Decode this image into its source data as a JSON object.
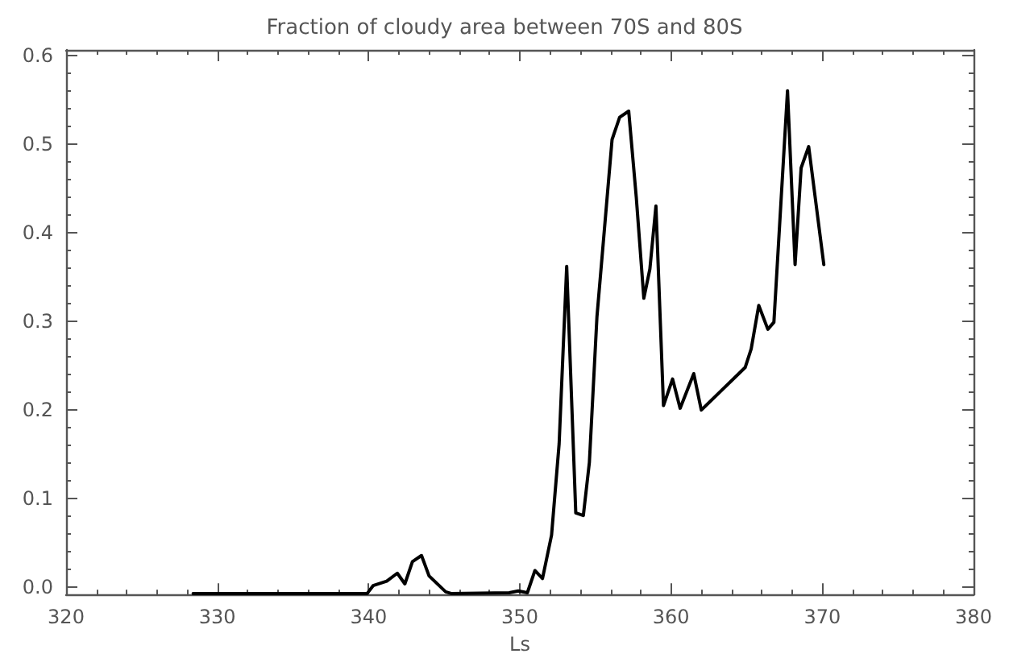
{
  "chart_data": {
    "type": "line",
    "title": "Fraction of cloudy area between 70S and 80S",
    "xlabel": "Ls",
    "x": [
      328.4,
      339.9,
      340.3,
      341.2,
      341.9,
      342.4,
      342.9,
      343.5,
      344.0,
      345.1,
      345.5,
      349.3,
      349.9,
      350.5,
      351.0,
      351.5,
      352.1,
      352.6,
      353.1,
      353.7,
      354.2,
      354.6,
      355.1,
      355.6,
      356.1,
      356.6,
      357.2,
      357.7,
      358.2,
      358.6,
      359.0,
      359.5,
      360.1,
      360.6,
      361.5,
      362.0,
      364.9,
      365.3,
      365.8,
      366.4,
      366.8,
      367.7,
      368.2,
      368.6,
      369.1,
      370.1
    ],
    "values": [
      -0.007,
      -0.007,
      0.002,
      0.007,
      0.016,
      0.004,
      0.029,
      0.036,
      0.013,
      -0.005,
      -0.007,
      -0.006,
      -0.004,
      -0.006,
      0.019,
      0.01,
      0.059,
      0.162,
      0.362,
      0.084,
      0.081,
      0.141,
      0.305,
      0.405,
      0.505,
      0.53,
      0.537,
      0.44,
      0.326,
      0.359,
      0.43,
      0.205,
      0.235,
      0.202,
      0.241,
      0.2,
      0.248,
      0.269,
      0.318,
      0.291,
      0.299,
      0.56,
      0.364,
      0.473,
      0.497,
      0.364
    ],
    "color": "#000000",
    "xlim": [
      320,
      380
    ],
    "xticks": [
      320,
      330,
      340,
      350,
      360,
      370,
      380
    ],
    "ylim": [
      -0.008,
      0.606
    ],
    "yticks": [
      {
        "value": 0,
        "label": "0.0"
      },
      {
        "value": 0.1,
        "label": "0.1"
      },
      {
        "value": 0.2,
        "label": "0.2"
      },
      {
        "value": 0.3,
        "label": "0.3"
      },
      {
        "value": 0.4,
        "label": "0.4"
      },
      {
        "value": 0.5,
        "label": "0.5"
      },
      {
        "value": 0.6,
        "label": "0.6"
      }
    ]
  }
}
